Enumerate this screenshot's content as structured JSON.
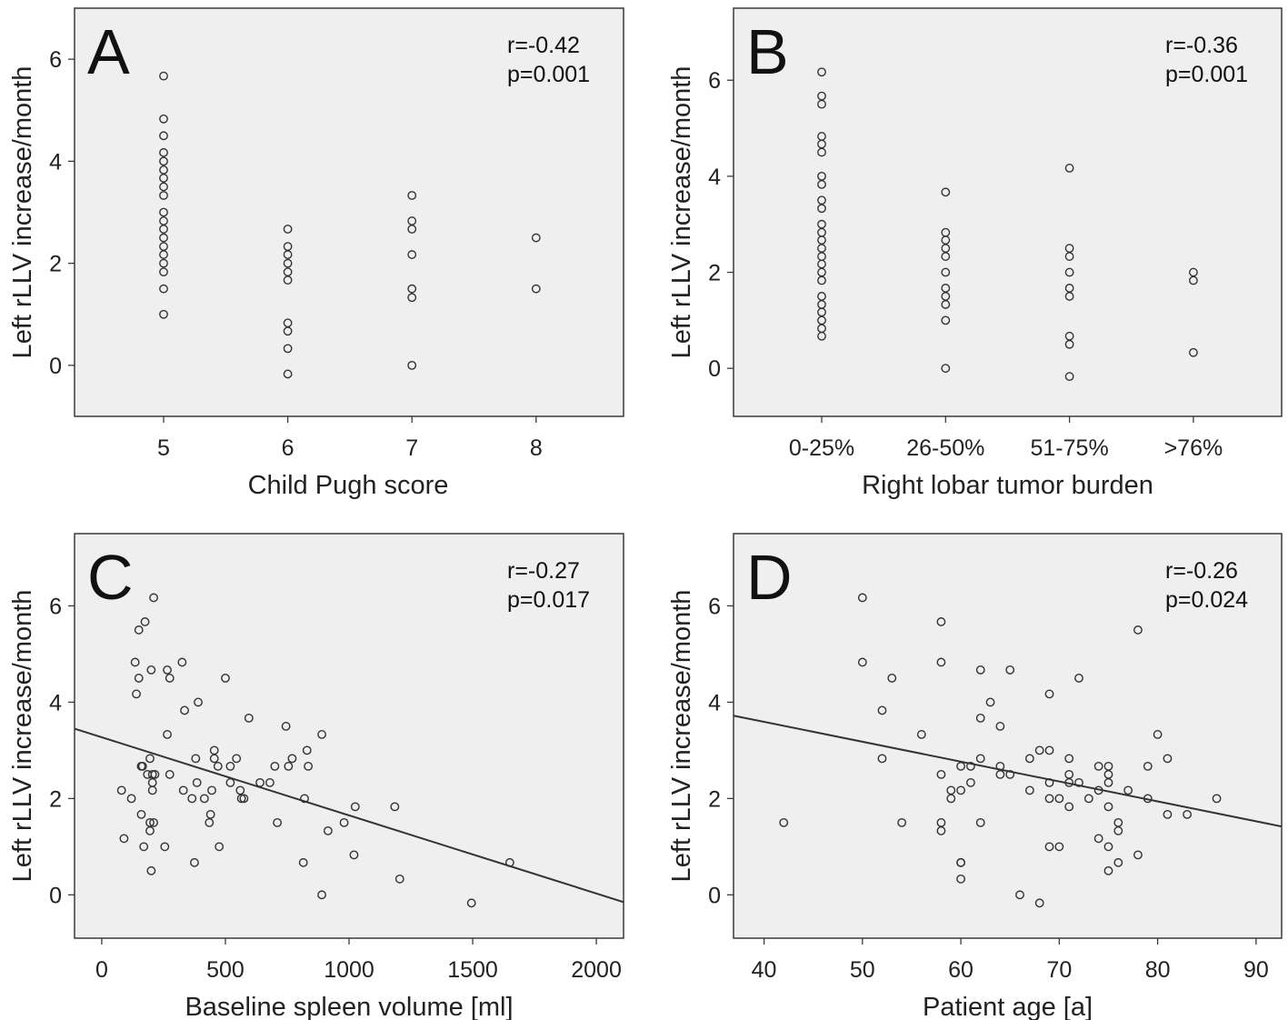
{
  "chart_data": [
    {
      "panel": "A",
      "type": "scatter",
      "x_type": "categorical",
      "categories": [
        "5",
        "6",
        "7",
        "8"
      ],
      "xlabel": "Child Pugh score",
      "ylabel": "Left rLLV increase/month",
      "ylim": [
        -1,
        7
      ],
      "yticks": [
        0,
        2,
        4,
        6
      ],
      "annotation": [
        "r=-0.42",
        "p=0.001"
      ],
      "fit_line": null,
      "points": [
        {
          "x": "5",
          "y": 5.67
        },
        {
          "x": "5",
          "y": 4.83
        },
        {
          "x": "5",
          "y": 4.5
        },
        {
          "x": "5",
          "y": 4.17
        },
        {
          "x": "5",
          "y": 4.0
        },
        {
          "x": "5",
          "y": 3.83
        },
        {
          "x": "5",
          "y": 3.67
        },
        {
          "x": "5",
          "y": 3.5
        },
        {
          "x": "5",
          "y": 3.33
        },
        {
          "x": "5",
          "y": 3.0
        },
        {
          "x": "5",
          "y": 2.83
        },
        {
          "x": "5",
          "y": 2.67
        },
        {
          "x": "5",
          "y": 2.5
        },
        {
          "x": "5",
          "y": 2.33
        },
        {
          "x": "5",
          "y": 2.17
        },
        {
          "x": "5",
          "y": 2.0
        },
        {
          "x": "5",
          "y": 1.83
        },
        {
          "x": "5",
          "y": 1.5
        },
        {
          "x": "5",
          "y": 1.0
        },
        {
          "x": "6",
          "y": 2.67
        },
        {
          "x": "6",
          "y": 2.33
        },
        {
          "x": "6",
          "y": 2.17
        },
        {
          "x": "6",
          "y": 2.0
        },
        {
          "x": "6",
          "y": 1.83
        },
        {
          "x": "6",
          "y": 1.67
        },
        {
          "x": "6",
          "y": 0.83
        },
        {
          "x": "6",
          "y": 0.67
        },
        {
          "x": "6",
          "y": 0.33
        },
        {
          "x": "6",
          "y": -0.17
        },
        {
          "x": "7",
          "y": 3.33
        },
        {
          "x": "7",
          "y": 2.83
        },
        {
          "x": "7",
          "y": 2.67
        },
        {
          "x": "7",
          "y": 2.17
        },
        {
          "x": "7",
          "y": 1.5
        },
        {
          "x": "7",
          "y": 1.33
        },
        {
          "x": "7",
          "y": 0.0
        },
        {
          "x": "8",
          "y": 2.5
        },
        {
          "x": "8",
          "y": 1.5
        }
      ]
    },
    {
      "panel": "B",
      "type": "scatter",
      "x_type": "categorical",
      "categories": [
        "0-25%",
        "26-50%",
        "51-75%",
        ">76%"
      ],
      "xlabel": "Right lobar tumor burden",
      "ylabel": "Left rLLV increase/month",
      "ylim": [
        -1,
        7.5
      ],
      "yticks": [
        0,
        2,
        4,
        6
      ],
      "annotation": [
        "r=-0.36",
        "p=0.001"
      ],
      "fit_line": null,
      "points": [
        {
          "x": "0-25%",
          "y": 6.17
        },
        {
          "x": "0-25%",
          "y": 5.67
        },
        {
          "x": "0-25%",
          "y": 5.5
        },
        {
          "x": "0-25%",
          "y": 4.83
        },
        {
          "x": "0-25%",
          "y": 4.67
        },
        {
          "x": "0-25%",
          "y": 4.5
        },
        {
          "x": "0-25%",
          "y": 4.0
        },
        {
          "x": "0-25%",
          "y": 3.83
        },
        {
          "x": "0-25%",
          "y": 3.5
        },
        {
          "x": "0-25%",
          "y": 3.33
        },
        {
          "x": "0-25%",
          "y": 3.0
        },
        {
          "x": "0-25%",
          "y": 2.83
        },
        {
          "x": "0-25%",
          "y": 2.67
        },
        {
          "x": "0-25%",
          "y": 2.5
        },
        {
          "x": "0-25%",
          "y": 2.33
        },
        {
          "x": "0-25%",
          "y": 2.17
        },
        {
          "x": "0-25%",
          "y": 2.0
        },
        {
          "x": "0-25%",
          "y": 1.83
        },
        {
          "x": "0-25%",
          "y": 1.5
        },
        {
          "x": "0-25%",
          "y": 1.33
        },
        {
          "x": "0-25%",
          "y": 1.17
        },
        {
          "x": "0-25%",
          "y": 1.0
        },
        {
          "x": "0-25%",
          "y": 0.83
        },
        {
          "x": "0-25%",
          "y": 0.67
        },
        {
          "x": "26-50%",
          "y": 3.67
        },
        {
          "x": "26-50%",
          "y": 2.83
        },
        {
          "x": "26-50%",
          "y": 2.67
        },
        {
          "x": "26-50%",
          "y": 2.5
        },
        {
          "x": "26-50%",
          "y": 2.33
        },
        {
          "x": "26-50%",
          "y": 2.0
        },
        {
          "x": "26-50%",
          "y": 1.67
        },
        {
          "x": "26-50%",
          "y": 1.5
        },
        {
          "x": "26-50%",
          "y": 1.33
        },
        {
          "x": "26-50%",
          "y": 1.0
        },
        {
          "x": "26-50%",
          "y": 0.0
        },
        {
          "x": "51-75%",
          "y": 4.17
        },
        {
          "x": "51-75%",
          "y": 2.5
        },
        {
          "x": "51-75%",
          "y": 2.33
        },
        {
          "x": "51-75%",
          "y": 2.0
        },
        {
          "x": "51-75%",
          "y": 1.67
        },
        {
          "x": "51-75%",
          "y": 1.5
        },
        {
          "x": "51-75%",
          "y": 0.67
        },
        {
          "x": "51-75%",
          "y": 0.5
        },
        {
          "x": "51-75%",
          "y": -0.17
        },
        {
          "x": ">76%",
          "y": 2.0
        },
        {
          "x": ">76%",
          "y": 1.83
        },
        {
          "x": ">76%",
          "y": 0.33
        }
      ]
    },
    {
      "panel": "C",
      "type": "scatter",
      "x_type": "numeric",
      "xlabel": "Baseline spleen volume [ml]",
      "ylabel": "Left rLLV increase/month",
      "xlim": [
        -110,
        2110
      ],
      "xticks": [
        0,
        500,
        1000,
        1500,
        2000
      ],
      "ylim": [
        -0.9,
        7.5
      ],
      "yticks": [
        0,
        2,
        4,
        6
      ],
      "annotation": [
        "r=-0.27",
        "p=0.017"
      ],
      "fit_line": {
        "x1": -110,
        "y1": 3.45,
        "x2": 2110,
        "y2": -0.15
      },
      "points": [
        {
          "x": 210,
          "y": 6.17
        },
        {
          "x": 175,
          "y": 5.67
        },
        {
          "x": 150,
          "y": 5.5
        },
        {
          "x": 135,
          "y": 4.83
        },
        {
          "x": 325,
          "y": 4.83
        },
        {
          "x": 200,
          "y": 4.67
        },
        {
          "x": 265,
          "y": 4.67
        },
        {
          "x": 150,
          "y": 4.5
        },
        {
          "x": 275,
          "y": 4.5
        },
        {
          "x": 500,
          "y": 4.5
        },
        {
          "x": 140,
          "y": 4.17
        },
        {
          "x": 390,
          "y": 4.0
        },
        {
          "x": 335,
          "y": 3.83
        },
        {
          "x": 595,
          "y": 3.67
        },
        {
          "x": 745,
          "y": 3.5
        },
        {
          "x": 265,
          "y": 3.33
        },
        {
          "x": 890,
          "y": 3.33
        },
        {
          "x": 455,
          "y": 3.0
        },
        {
          "x": 830,
          "y": 3.0
        },
        {
          "x": 195,
          "y": 2.83
        },
        {
          "x": 380,
          "y": 2.83
        },
        {
          "x": 455,
          "y": 2.83
        },
        {
          "x": 545,
          "y": 2.83
        },
        {
          "x": 770,
          "y": 2.83
        },
        {
          "x": 160,
          "y": 2.67
        },
        {
          "x": 165,
          "y": 2.67
        },
        {
          "x": 470,
          "y": 2.67
        },
        {
          "x": 520,
          "y": 2.67
        },
        {
          "x": 700,
          "y": 2.67
        },
        {
          "x": 755,
          "y": 2.67
        },
        {
          "x": 835,
          "y": 2.67
        },
        {
          "x": 185,
          "y": 2.5
        },
        {
          "x": 205,
          "y": 2.5
        },
        {
          "x": 215,
          "y": 2.5
        },
        {
          "x": 275,
          "y": 2.5
        },
        {
          "x": 205,
          "y": 2.33
        },
        {
          "x": 385,
          "y": 2.33
        },
        {
          "x": 520,
          "y": 2.33
        },
        {
          "x": 640,
          "y": 2.33
        },
        {
          "x": 680,
          "y": 2.33
        },
        {
          "x": 80,
          "y": 2.17
        },
        {
          "x": 205,
          "y": 2.17
        },
        {
          "x": 330,
          "y": 2.17
        },
        {
          "x": 445,
          "y": 2.17
        },
        {
          "x": 560,
          "y": 2.17
        },
        {
          "x": 120,
          "y": 2.0
        },
        {
          "x": 365,
          "y": 2.0
        },
        {
          "x": 415,
          "y": 2.0
        },
        {
          "x": 565,
          "y": 2.0
        },
        {
          "x": 575,
          "y": 2.0
        },
        {
          "x": 820,
          "y": 2.0
        },
        {
          "x": 1025,
          "y": 1.83
        },
        {
          "x": 1185,
          "y": 1.83
        },
        {
          "x": 160,
          "y": 1.67
        },
        {
          "x": 440,
          "y": 1.67
        },
        {
          "x": 195,
          "y": 1.5
        },
        {
          "x": 210,
          "y": 1.5
        },
        {
          "x": 435,
          "y": 1.5
        },
        {
          "x": 710,
          "y": 1.5
        },
        {
          "x": 980,
          "y": 1.5
        },
        {
          "x": 195,
          "y": 1.33
        },
        {
          "x": 915,
          "y": 1.33
        },
        {
          "x": 90,
          "y": 1.17
        },
        {
          "x": 170,
          "y": 1.0
        },
        {
          "x": 255,
          "y": 1.0
        },
        {
          "x": 475,
          "y": 1.0
        },
        {
          "x": 1020,
          "y": 0.83
        },
        {
          "x": 375,
          "y": 0.67
        },
        {
          "x": 815,
          "y": 0.67
        },
        {
          "x": 1650,
          "y": 0.67
        },
        {
          "x": 200,
          "y": 0.5
        },
        {
          "x": 1205,
          "y": 0.33
        },
        {
          "x": 890,
          "y": 0.0
        },
        {
          "x": 1495,
          "y": -0.17
        }
      ]
    },
    {
      "panel": "D",
      "type": "scatter",
      "x_type": "numeric",
      "xlabel": "Patient age [a]",
      "ylabel": "Left rLLV increase/month",
      "xlim": [
        36.9,
        92.6
      ],
      "xticks": [
        40,
        50,
        60,
        70,
        80,
        90
      ],
      "ylim": [
        -0.9,
        7.5
      ],
      "yticks": [
        0,
        2,
        4,
        6
      ],
      "annotation": [
        "r=-0.26",
        "p=0.024"
      ],
      "fit_line": {
        "x1": 36.9,
        "y1": 3.72,
        "x2": 92.6,
        "y2": 1.42
      },
      "points": [
        {
          "x": 50,
          "y": 6.17
        },
        {
          "x": 58,
          "y": 5.67
        },
        {
          "x": 78,
          "y": 5.5
        },
        {
          "x": 50,
          "y": 4.83
        },
        {
          "x": 58,
          "y": 4.83
        },
        {
          "x": 62,
          "y": 4.67
        },
        {
          "x": 65,
          "y": 4.67
        },
        {
          "x": 53,
          "y": 4.5
        },
        {
          "x": 72,
          "y": 4.5
        },
        {
          "x": 69,
          "y": 4.17
        },
        {
          "x": 63,
          "y": 4.0
        },
        {
          "x": 52,
          "y": 3.83
        },
        {
          "x": 62,
          "y": 3.67
        },
        {
          "x": 64,
          "y": 3.5
        },
        {
          "x": 56,
          "y": 3.33
        },
        {
          "x": 80,
          "y": 3.33
        },
        {
          "x": 68,
          "y": 3.0
        },
        {
          "x": 69,
          "y": 3.0
        },
        {
          "x": 52,
          "y": 2.83
        },
        {
          "x": 62,
          "y": 2.83
        },
        {
          "x": 67,
          "y": 2.83
        },
        {
          "x": 71,
          "y": 2.83
        },
        {
          "x": 81,
          "y": 2.83
        },
        {
          "x": 60,
          "y": 2.67
        },
        {
          "x": 61,
          "y": 2.67
        },
        {
          "x": 64,
          "y": 2.67
        },
        {
          "x": 74,
          "y": 2.67
        },
        {
          "x": 75,
          "y": 2.67
        },
        {
          "x": 79,
          "y": 2.67
        },
        {
          "x": 58,
          "y": 2.5
        },
        {
          "x": 64,
          "y": 2.5
        },
        {
          "x": 65,
          "y": 2.5
        },
        {
          "x": 71,
          "y": 2.5
        },
        {
          "x": 75,
          "y": 2.5
        },
        {
          "x": 61,
          "y": 2.33
        },
        {
          "x": 69,
          "y": 2.33
        },
        {
          "x": 71,
          "y": 2.33
        },
        {
          "x": 72,
          "y": 2.33
        },
        {
          "x": 75,
          "y": 2.33
        },
        {
          "x": 59,
          "y": 2.17
        },
        {
          "x": 60,
          "y": 2.17
        },
        {
          "x": 67,
          "y": 2.17
        },
        {
          "x": 74,
          "y": 2.17
        },
        {
          "x": 77,
          "y": 2.17
        },
        {
          "x": 59,
          "y": 2.0
        },
        {
          "x": 69,
          "y": 2.0
        },
        {
          "x": 70,
          "y": 2.0
        },
        {
          "x": 73,
          "y": 2.0
        },
        {
          "x": 79,
          "y": 2.0
        },
        {
          "x": 86,
          "y": 2.0
        },
        {
          "x": 71,
          "y": 1.83
        },
        {
          "x": 75,
          "y": 1.83
        },
        {
          "x": 81,
          "y": 1.67
        },
        {
          "x": 83,
          "y": 1.67
        },
        {
          "x": 42,
          "y": 1.5
        },
        {
          "x": 54,
          "y": 1.5
        },
        {
          "x": 58,
          "y": 1.5
        },
        {
          "x": 62,
          "y": 1.5
        },
        {
          "x": 76,
          "y": 1.5
        },
        {
          "x": 58,
          "y": 1.33
        },
        {
          "x": 76,
          "y": 1.33
        },
        {
          "x": 74,
          "y": 1.17
        },
        {
          "x": 69,
          "y": 1.0
        },
        {
          "x": 70,
          "y": 1.0
        },
        {
          "x": 75,
          "y": 1.0
        },
        {
          "x": 78,
          "y": 0.83
        },
        {
          "x": 60,
          "y": 0.67
        },
        {
          "x": 60,
          "y": 0.67
        },
        {
          "x": 76,
          "y": 0.67
        },
        {
          "x": 75,
          "y": 0.5
        },
        {
          "x": 60,
          "y": 0.33
        },
        {
          "x": 66,
          "y": 0.0
        },
        {
          "x": 68,
          "y": -0.17
        }
      ]
    }
  ]
}
